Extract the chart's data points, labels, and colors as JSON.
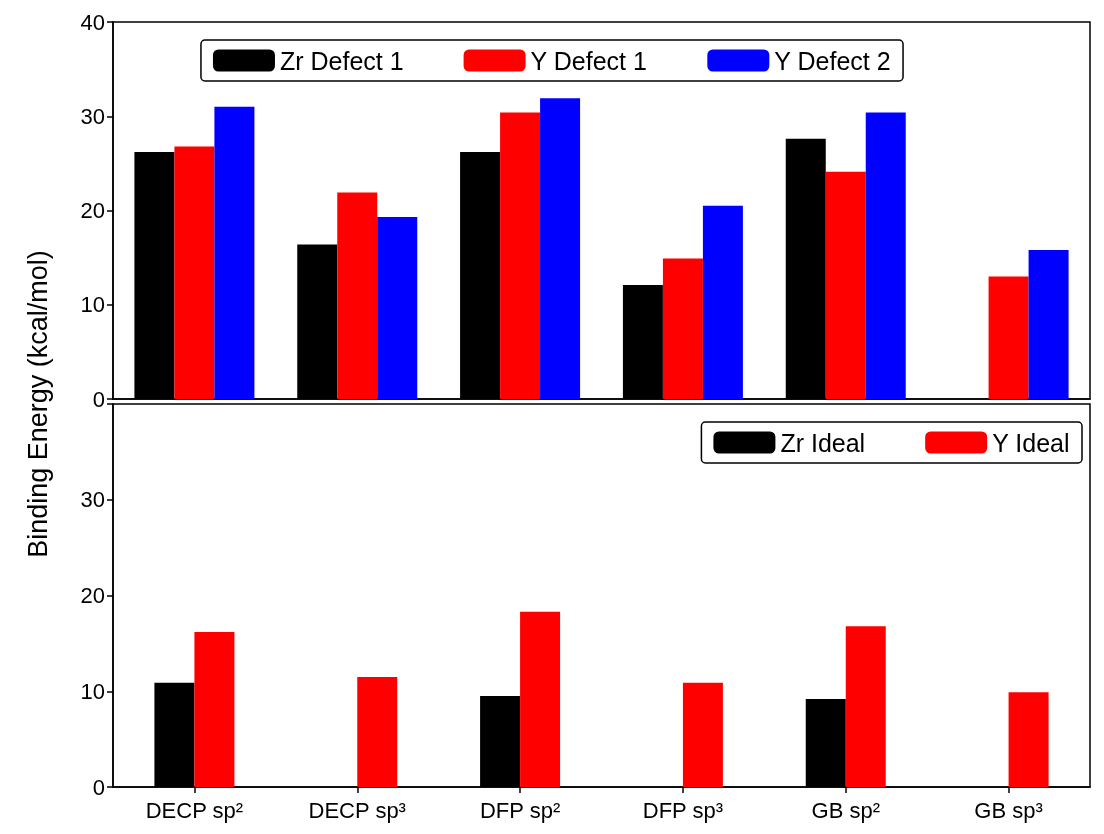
{
  "chart_data": [
    {
      "type": "bar",
      "ylabel": "Binding Energy (kcal/mol)",
      "categories": [
        null,
        null,
        null,
        null,
        null,
        null
      ],
      "series": [
        {
          "name": "Zr Defect 1",
          "color": "#000000",
          "values": [
            26.2,
            16.4,
            26.2,
            12.1,
            27.6,
            null
          ]
        },
        {
          "name": "Y Defect 1",
          "color": "#ff0000",
          "values": [
            26.8,
            21.9,
            30.4,
            14.9,
            24.1,
            13.0
          ]
        },
        {
          "name": "Y Defect 2",
          "color": "#0000ff",
          "values": [
            31.0,
            19.3,
            31.9,
            20.5,
            30.4,
            15.8
          ]
        }
      ],
      "ylim": [
        0,
        40
      ],
      "yticks": [
        0,
        10,
        20,
        30,
        40
      ],
      "grid": false,
      "legend": "top",
      "tick_labels": "y"
    },
    {
      "type": "bar",
      "categories": [
        "DECP sp²",
        "DECP sp³",
        "DFP sp²",
        "DFP sp³",
        "GB sp²",
        "GB sp³"
      ],
      "series": [
        {
          "name": "Zr Ideal",
          "color": "#000000",
          "values": [
            10.9,
            null,
            9.5,
            null,
            9.2,
            null
          ]
        },
        {
          "name": "Y Ideal",
          "color": "#ff0000",
          "values": [
            16.2,
            11.5,
            18.3,
            10.9,
            16.8,
            9.9
          ]
        }
      ],
      "ylim": [
        0,
        40
      ],
      "yticks": [
        0,
        10,
        20,
        30,
        {
          "value": 40,
          "label": null
        }
      ],
      "grid": false,
      "legend": "top right"
    }
  ]
}
